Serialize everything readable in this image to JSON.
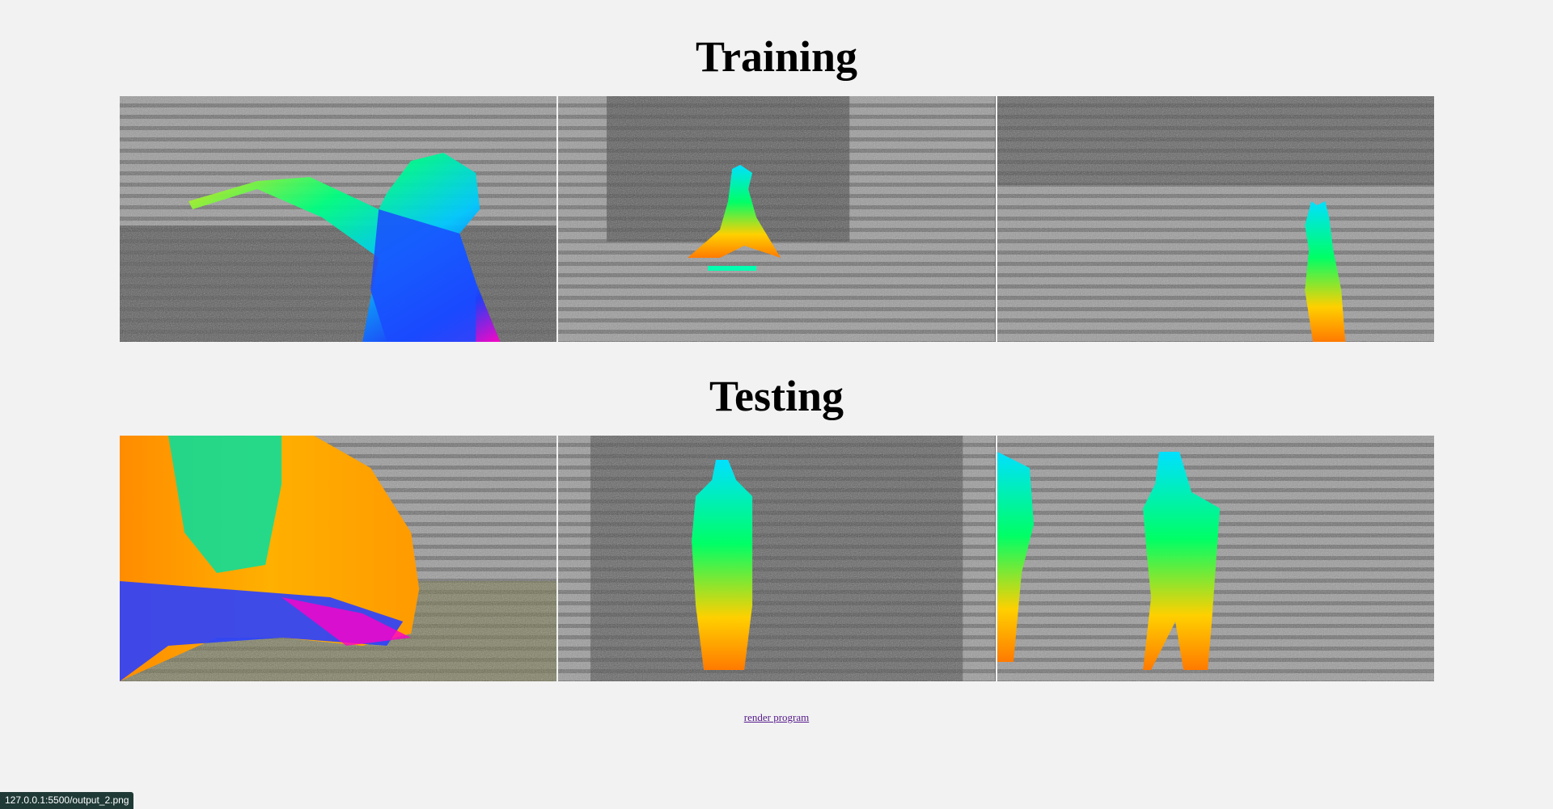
{
  "sections": {
    "training_title": "Training",
    "testing_title": "Testing"
  },
  "training_images": [
    {
      "subject": "dancer-arm-outstretched"
    },
    {
      "subject": "kid-on-scooter"
    },
    {
      "subject": "person-hands-raised"
    }
  ],
  "testing_images": [
    {
      "subject": "person-at-table"
    },
    {
      "subject": "bagpiper"
    },
    {
      "subject": "person-with-instrument"
    }
  ],
  "footer": {
    "link_label": "render program"
  },
  "status_bar": {
    "url": "127.0.0.1:5500/output_2.png"
  },
  "colors": {
    "background": "#f2f2f2",
    "link": "#551a8b",
    "status_bg": "#1f3a36"
  }
}
